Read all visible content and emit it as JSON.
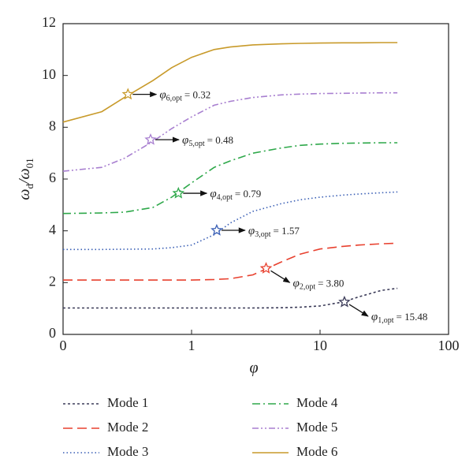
{
  "chart_data": {
    "type": "line",
    "xlabel": "φ",
    "ylabel_parts": [
      {
        "text": "ω"
      },
      {
        "text": "d",
        "sub": true
      },
      {
        "text": "/ω"
      },
      {
        "text": "01",
        "sub": true
      }
    ],
    "xscale": "log",
    "xlim": [
      0.1,
      100
    ],
    "xticks": [
      {
        "value": 0.1,
        "label": "0"
      },
      1,
      10,
      100
    ],
    "ylim": [
      0,
      12
    ],
    "yticks": [
      0,
      2,
      4,
      6,
      8,
      10,
      12
    ],
    "x": [
      0.1,
      0.2,
      0.3,
      0.5,
      0.7,
      1,
      1.5,
      2,
      3,
      5,
      7,
      10,
      15,
      20,
      30,
      40
    ],
    "series": [
      {
        "name": "Mode 1",
        "color": "#3b3b58",
        "values": [
          1.02,
          1.02,
          1.02,
          1.02,
          1.02,
          1.02,
          1.02,
          1.02,
          1.02,
          1.03,
          1.05,
          1.1,
          1.25,
          1.45,
          1.7,
          1.78
        ]
      },
      {
        "name": "Mode 2",
        "color": "#e8412f",
        "values": [
          2.1,
          2.1,
          2.1,
          2.1,
          2.1,
          2.1,
          2.12,
          2.15,
          2.3,
          2.8,
          3.1,
          3.3,
          3.4,
          3.45,
          3.5,
          3.52
        ]
      },
      {
        "name": "Mode 3",
        "color": "#3a5fb5",
        "values": [
          3.28,
          3.28,
          3.29,
          3.3,
          3.35,
          3.45,
          3.85,
          4.3,
          4.75,
          5.05,
          5.2,
          5.3,
          5.38,
          5.42,
          5.47,
          5.5
        ]
      },
      {
        "name": "Mode 4",
        "color": "#2ea84a",
        "values": [
          4.67,
          4.69,
          4.72,
          4.9,
          5.3,
          5.85,
          6.45,
          6.7,
          7.0,
          7.2,
          7.3,
          7.35,
          7.38,
          7.39,
          7.4,
          7.4
        ]
      },
      {
        "name": "Mode 5",
        "color": "#a87fd0",
        "values": [
          6.3,
          6.45,
          6.8,
          7.45,
          7.95,
          8.4,
          8.85,
          9.0,
          9.15,
          9.25,
          9.28,
          9.3,
          9.31,
          9.32,
          9.33,
          9.33
        ]
      },
      {
        "name": "Mode 6",
        "color": "#c89a2a",
        "values": [
          8.2,
          8.6,
          9.15,
          9.8,
          10.3,
          10.7,
          11.0,
          11.1,
          11.18,
          11.22,
          11.24,
          11.25,
          11.26,
          11.26,
          11.27,
          11.27
        ]
      }
    ],
    "annotations": [
      {
        "symbol": "φ",
        "subscript": "1,opt",
        "text": "= 15.48",
        "x": 15.48,
        "y": 1.25
      },
      {
        "symbol": "φ",
        "subscript": "2,opt",
        "text": "= 3.80",
        "x": 3.8,
        "y": 2.55
      },
      {
        "symbol": "φ",
        "subscript": "3,opt",
        "text": "= 1.57",
        "x": 1.57,
        "y": 4.02
      },
      {
        "symbol": "φ",
        "subscript": "4,opt",
        "text": "= 0.79",
        "x": 0.79,
        "y": 5.45
      },
      {
        "symbol": "φ",
        "subscript": "5,opt",
        "text": "= 0.48",
        "x": 0.48,
        "y": 7.52
      },
      {
        "symbol": "φ",
        "subscript": "6,opt",
        "text": "= 0.32",
        "x": 0.32,
        "y": 9.27
      }
    ]
  }
}
